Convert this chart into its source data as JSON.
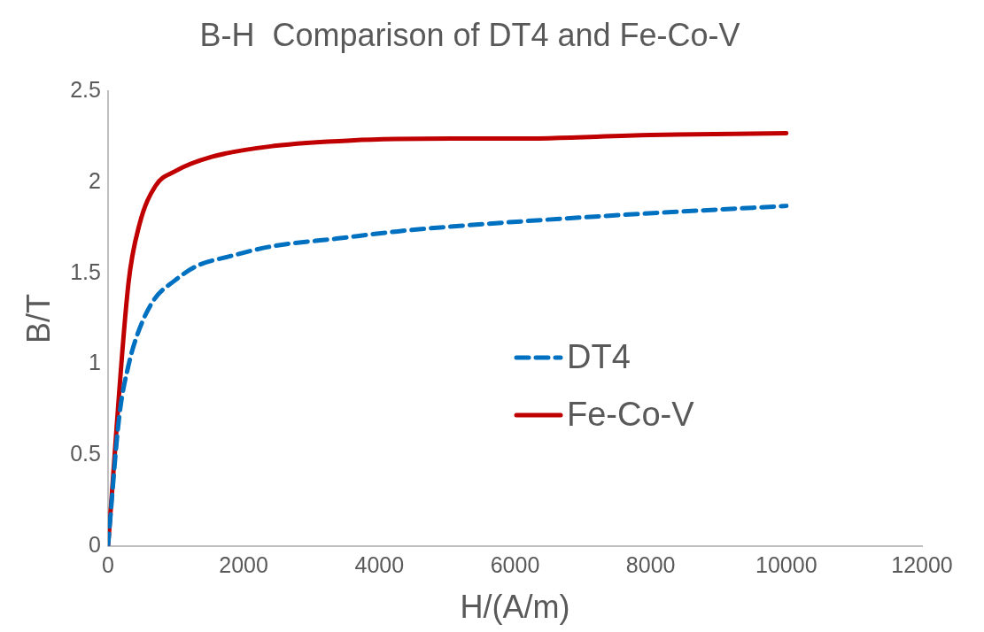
{
  "chart_data": {
    "type": "line",
    "title": "B-H  Comparison of DT4 and Fe-Co-V",
    "xlabel": "H/(A/m)",
    "ylabel": "B/T",
    "xlim": [
      0,
      12000
    ],
    "xticks": [
      0,
      2000,
      4000,
      6000,
      8000,
      10000,
      12000
    ],
    "ylim": [
      0,
      2.5
    ],
    "yticks": [
      0,
      0.5,
      1,
      1.5,
      2,
      2.5
    ],
    "grid": false,
    "legend": "right",
    "marker": "none",
    "series": [
      {
        "name": "DT4",
        "color": "#0070c0",
        "line_style": "dashed",
        "x": [
          0,
          165,
          300,
          440,
          670,
          985,
          1310,
          1765,
          2450,
          3365,
          4270,
          5180,
          7560,
          10000
        ],
        "values": [
          0,
          0.71,
          0.99,
          1.17,
          1.35,
          1.46,
          1.54,
          1.59,
          1.65,
          1.69,
          1.73,
          1.76,
          1.82,
          1.87
        ]
      },
      {
        "name": "Fe-Co-V",
        "color": "#c00000",
        "line_style": "solid",
        "x": [
          0,
          300,
          465,
          700,
          985,
          1530,
          2450,
          3580,
          5180,
          6000,
          8000,
          10000
        ],
        "values": [
          0,
          1.44,
          1.77,
          1.98,
          2.06,
          2.14,
          2.2,
          2.23,
          2.24,
          2.24,
          2.26,
          2.27
        ]
      }
    ]
  }
}
